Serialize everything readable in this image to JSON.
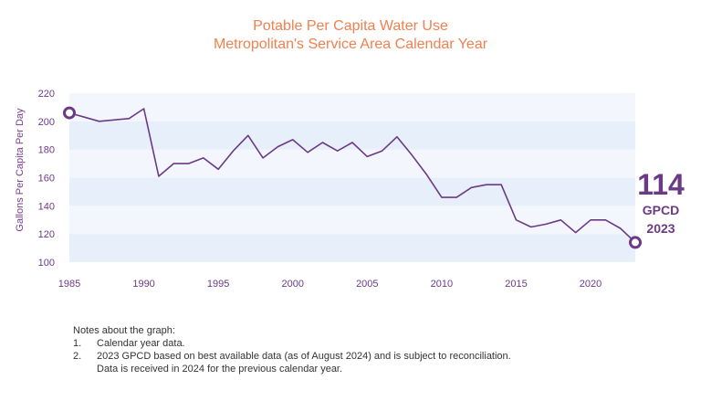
{
  "chart_data": {
    "type": "line",
    "title": "Potable Per Capita Water Use",
    "subtitle": "Metropolitan's Service Area Calendar Year",
    "ylabel": "Gallons Per Capita Per Day",
    "xlim": [
      1985,
      2023
    ],
    "ylim": [
      100,
      220
    ],
    "yticks": [
      100,
      120,
      140,
      160,
      180,
      200,
      220
    ],
    "xticks": [
      1985,
      1990,
      1995,
      2000,
      2005,
      2010,
      2015,
      2020
    ],
    "band_colors": [
      "#e6effa",
      "#f3f7fd"
    ],
    "line_color": "#6b3a87",
    "series": [
      {
        "x": [
          1985,
          1986,
          1987,
          1988,
          1989,
          1990,
          1991,
          1992,
          1993,
          1994,
          1995,
          1996,
          1997,
          1998,
          1999,
          2000,
          2001,
          2002,
          2003,
          2004,
          2005,
          2006,
          2007,
          2008,
          2009,
          2010,
          2011,
          2012,
          2013,
          2014,
          2015,
          2016,
          2017,
          2018,
          2019,
          2020,
          2021,
          2022,
          2023
        ],
        "values": [
          206,
          203,
          200,
          201,
          202,
          209,
          161,
          170,
          170,
          174,
          166,
          179,
          190,
          174,
          182,
          187,
          178,
          185,
          179,
          185,
          175,
          179,
          189,
          176,
          162,
          146,
          146,
          153,
          155,
          155,
          130,
          125,
          127,
          130,
          121,
          130,
          130,
          124,
          114
        ]
      }
    ]
  },
  "callout": {
    "value": "114",
    "unit": "GPCD",
    "year": "2023"
  },
  "notes": {
    "heading": "Notes about the graph:",
    "items": [
      {
        "num": "1.",
        "text": "Calendar year data."
      },
      {
        "num": "2.",
        "text": "2023 GPCD based on best available data (as of August 2024) and is subject to reconciliation.",
        "continuation": "Data is received in 2024 for the previous calendar year."
      }
    ]
  }
}
